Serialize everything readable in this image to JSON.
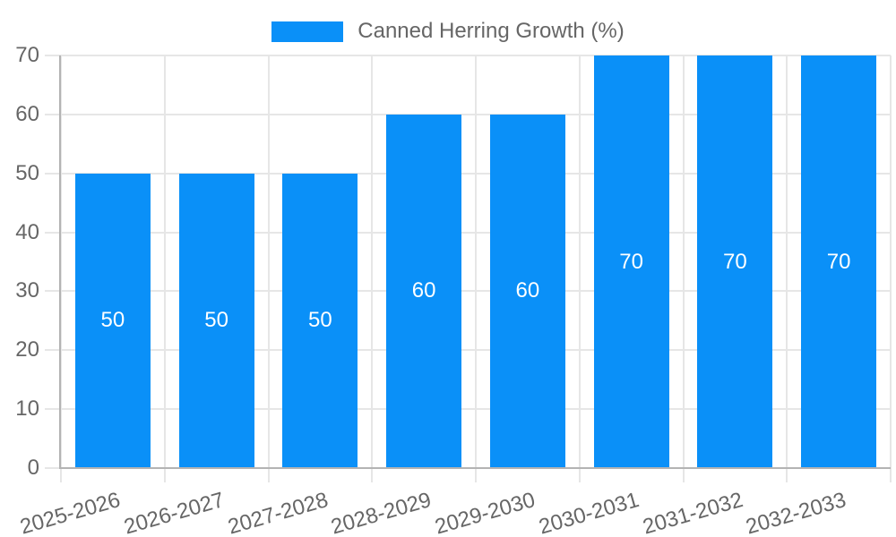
{
  "legend": {
    "label": "Canned Herring Growth (%)"
  },
  "colors": {
    "bar": "#0a90f8",
    "text": "#666666",
    "grid": "#e6e6e6",
    "axis_border": "#b3b3b3",
    "value_label": "#ffffff",
    "background": "#ffffff"
  },
  "chart_data": {
    "type": "bar",
    "title": "Canned Herring Growth (%)",
    "categories": [
      "2025-2026",
      "2026-2027",
      "2027-2028",
      "2028-2029",
      "2029-2030",
      "2030-2031",
      "2031-2032",
      "2032-2033"
    ],
    "values": [
      50,
      50,
      50,
      60,
      60,
      70,
      70,
      70
    ],
    "series": [
      {
        "name": "Canned Herring Growth (%)",
        "values": [
          50,
          50,
          50,
          60,
          60,
          70,
          70,
          70
        ]
      }
    ],
    "value_labels": [
      "50",
      "50",
      "50",
      "60",
      "60",
      "70",
      "70",
      "70"
    ],
    "xlabel": "",
    "ylabel": "",
    "ylim": [
      0,
      70
    ],
    "yticks": [
      0,
      10,
      20,
      30,
      40,
      50,
      60,
      70
    ],
    "grid": true,
    "legend_position": "top",
    "x_label_rotation_deg": -16,
    "value_label_position": "center"
  }
}
